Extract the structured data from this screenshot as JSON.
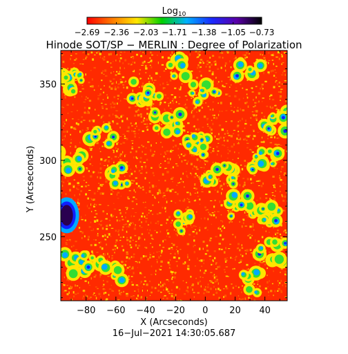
{
  "colorbar": {
    "title_main": "Log",
    "title_sub": "10",
    "tick_labels": [
      "−2.69",
      "−2.36",
      "−2.03",
      "−1.71",
      "−1.38",
      "−1.05",
      "−0.73"
    ],
    "values": [
      -2.69,
      -2.36,
      -2.03,
      -1.71,
      -1.38,
      -1.05,
      -0.73
    ],
    "colors": [
      "#ff0000",
      "#ff7a00",
      "#ffe600",
      "#00d000",
      "#00b0ff",
      "#1a2aff",
      "#5a00a8",
      "#000000"
    ]
  },
  "title": "Hinode SOT/SP − MERLIN : Degree of Polarization",
  "axes": {
    "xlabel": "X (Arcseconds)",
    "ylabel": "Y (Arcseconds)",
    "xlim": [
      -97,
      55
    ],
    "ylim": [
      208,
      372
    ],
    "x_ticks": [
      -80,
      -60,
      -40,
      -20,
      0,
      20,
      40
    ],
    "x_tick_labels": [
      "−80",
      "−60",
      "−40",
      "−20",
      "0",
      "20",
      "40"
    ],
    "y_ticks": [
      250,
      300,
      350
    ],
    "y_tick_labels": [
      "250",
      "300",
      "350"
    ]
  },
  "map": {
    "background_color": "#ff2a00",
    "speckle_colors": [
      "#ff8800",
      "#ffd400",
      "#ff5500"
    ],
    "patch_colors": [
      "#ffe600",
      "#33dd33",
      "#00aaff",
      "#1020ff",
      "#3a00a0"
    ],
    "sunspot": {
      "x": -93,
      "y": 264,
      "color": "#2a0050"
    }
  },
  "timestamp": "16−Jul−2021  14:30:05.687"
}
